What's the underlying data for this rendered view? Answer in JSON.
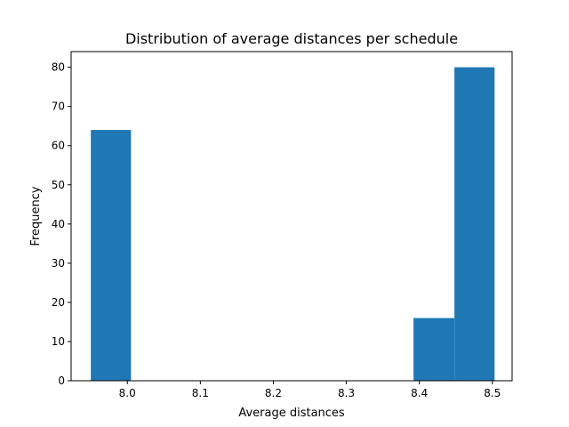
{
  "chart_data": {
    "type": "bar",
    "title": "Distribution of average distances per schedule",
    "xlabel": "Average distances",
    "ylabel": "Frequency",
    "xlim": [
      7.923,
      8.527
    ],
    "ylim": [
      0,
      84
    ],
    "x_ticks": [
      8.0,
      8.1,
      8.2,
      8.3,
      8.4,
      8.5
    ],
    "x_tick_labels": [
      "8.0",
      "8.1",
      "8.2",
      "8.3",
      "8.4",
      "8.5"
    ],
    "y_ticks": [
      0,
      10,
      20,
      30,
      40,
      50,
      60,
      70,
      80
    ],
    "y_tick_labels": [
      "0",
      "10",
      "20",
      "30",
      "40",
      "50",
      "60",
      "70",
      "80"
    ],
    "bin_edges": [
      7.95,
      8.005,
      8.061,
      8.116,
      8.171,
      8.227,
      8.282,
      8.337,
      8.392,
      8.448,
      8.503
    ],
    "values": [
      64,
      0,
      0,
      0,
      0,
      0,
      0,
      0,
      16,
      80
    ],
    "bar_color": "#1f77b4",
    "grid": false,
    "legend": "none"
  }
}
